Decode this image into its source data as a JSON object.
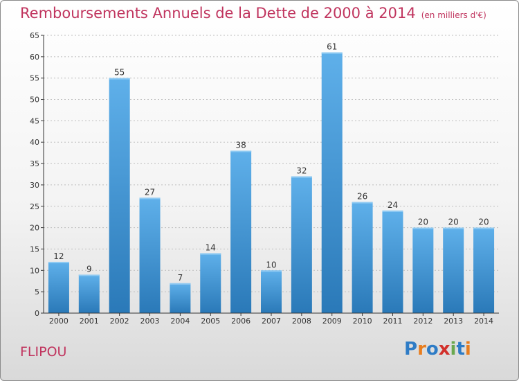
{
  "header": {
    "title": "Remboursements Annuels de la Dette de 2000 à 2014",
    "subtitle": "(en milliers d'€)"
  },
  "footer": {
    "place": "FLIPOU",
    "logo_text": "Proxiti",
    "logo_colors": [
      "#2e7cc6",
      "#e87d1e",
      "#2e7cc6",
      "#d2302b",
      "#6aa84f",
      "#2e7cc6",
      "#e87d1e"
    ]
  },
  "colors": {
    "title": "#c0345e",
    "bar_top": "#5fb0ea",
    "bar_bottom": "#2a79b8",
    "axis": "#333333",
    "grid": "#bdbdbd"
  },
  "chart_data": {
    "type": "bar",
    "title": "Remboursements Annuels de la Dette de 2000 à 2014",
    "subtitle": "(en milliers d'€)",
    "xlabel": "",
    "ylabel": "",
    "categories": [
      "2000",
      "2001",
      "2002",
      "2003",
      "2004",
      "2005",
      "2006",
      "2007",
      "2008",
      "2009",
      "2010",
      "2011",
      "2012",
      "2013",
      "2014"
    ],
    "values": [
      12,
      9,
      55,
      27,
      7,
      14,
      38,
      10,
      32,
      61,
      26,
      24,
      20,
      20,
      20
    ],
    "ylim": [
      0,
      65
    ],
    "yticks": [
      0,
      5,
      10,
      15,
      20,
      25,
      30,
      35,
      40,
      45,
      50,
      55,
      60,
      65
    ],
    "grid": true,
    "data_labels": true
  }
}
